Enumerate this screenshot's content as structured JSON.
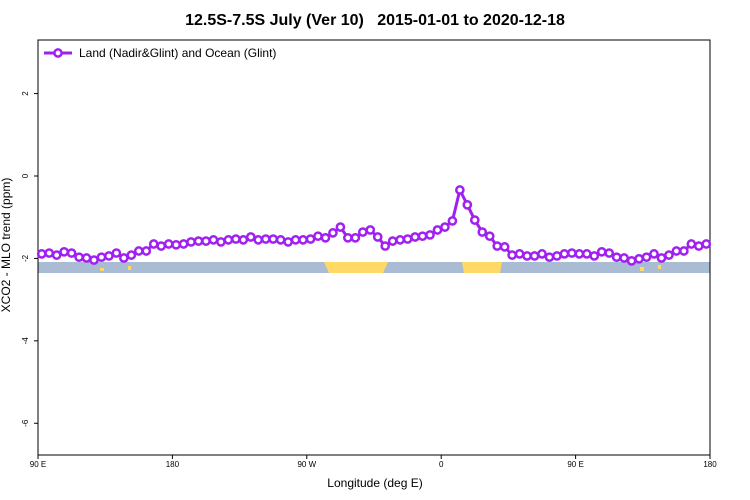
{
  "chart_data": {
    "type": "line",
    "title": "12.5S-7.5S July (Ver 10)   2015-01-01 to 2020-12-18",
    "x_label": "Longitude (deg E)",
    "y_label": "XCO2 - MLO trend (ppm)",
    "xlim": [
      90,
      540
    ],
    "xticks": [
      {
        "value": 90,
        "label": "90 E"
      },
      {
        "value": 180,
        "label": "180"
      },
      {
        "value": 270,
        "label": "90 W"
      },
      {
        "value": 360,
        "label": "0"
      },
      {
        "value": 450,
        "label": "90 E"
      },
      {
        "value": 540,
        "label": "180"
      }
    ],
    "ylim": [
      -6.77,
      3.3
    ],
    "yticks": [
      -6,
      -4,
      -2,
      0,
      2
    ],
    "legend": "top-left",
    "x": [
      92.5,
      97.5,
      102.5,
      107.5,
      112.5,
      117.5,
      122.5,
      127.5,
      132.5,
      137.5,
      142.5,
      147.5,
      152.5,
      157.5,
      162.5,
      167.5,
      172.5,
      177.5,
      182.5,
      187.5,
      192.5,
      197.5,
      202.5,
      207.5,
      212.5,
      217.5,
      222.5,
      227.5,
      232.5,
      237.5,
      242.5,
      247.5,
      252.5,
      257.5,
      262.5,
      267.5,
      272.5,
      277.5,
      282.5,
      287.5,
      292.5,
      297.5,
      302.5,
      307.5,
      312.5,
      317.5,
      322.5,
      327.5,
      332.5,
      337.5,
      342.5,
      347.5,
      352.5,
      357.5,
      362.5,
      367.5,
      372.5,
      377.5,
      382.5,
      387.5,
      392.5,
      397.5,
      402.5,
      407.5,
      412.5,
      417.5,
      422.5,
      427.5,
      432.5,
      437.5,
      442.5,
      447.5,
      452.5,
      457.5,
      462.5,
      467.5,
      472.5,
      477.5,
      482.5,
      487.5,
      492.5,
      497.5,
      502.5,
      507.5,
      512.5,
      517.5,
      522.5,
      527.5,
      532.5,
      537.5
    ],
    "series": [
      {
        "name": "Land (Nadir&Glint) and Ocean (Glint)",
        "color": "#a020f0",
        "values": [
          -1.89,
          -1.87,
          -1.92,
          -1.84,
          -1.87,
          -1.97,
          -1.99,
          -2.04,
          -1.97,
          -1.94,
          -1.87,
          -1.99,
          -1.92,
          -1.82,
          -1.82,
          -1.65,
          -1.7,
          -1.65,
          -1.67,
          -1.65,
          -1.6,
          -1.58,
          -1.58,
          -1.55,
          -1.6,
          -1.55,
          -1.53,
          -1.55,
          -1.48,
          -1.55,
          -1.53,
          -1.53,
          -1.55,
          -1.6,
          -1.55,
          -1.55,
          -1.53,
          -1.46,
          -1.5,
          -1.38,
          -1.24,
          -1.5,
          -1.5,
          -1.36,
          -1.31,
          -1.48,
          -1.7,
          -1.58,
          -1.55,
          -1.53,
          -1.48,
          -1.46,
          -1.43,
          -1.31,
          -1.24,
          -1.09,
          -0.34,
          -0.7,
          -1.07,
          -1.36,
          -1.46,
          -1.7,
          -1.72,
          -1.92,
          -1.89,
          -1.94,
          -1.94,
          -1.89,
          -1.97,
          -1.94,
          -1.89,
          -1.87,
          -1.89,
          -1.89,
          -1.94,
          -1.84,
          -1.87,
          -1.97,
          -1.99,
          -2.06,
          -2.01,
          -1.97,
          -1.89,
          -1.99,
          -1.92,
          -1.82,
          -1.82,
          -1.65,
          -1.7,
          -1.65
        ]
      }
    ]
  }
}
